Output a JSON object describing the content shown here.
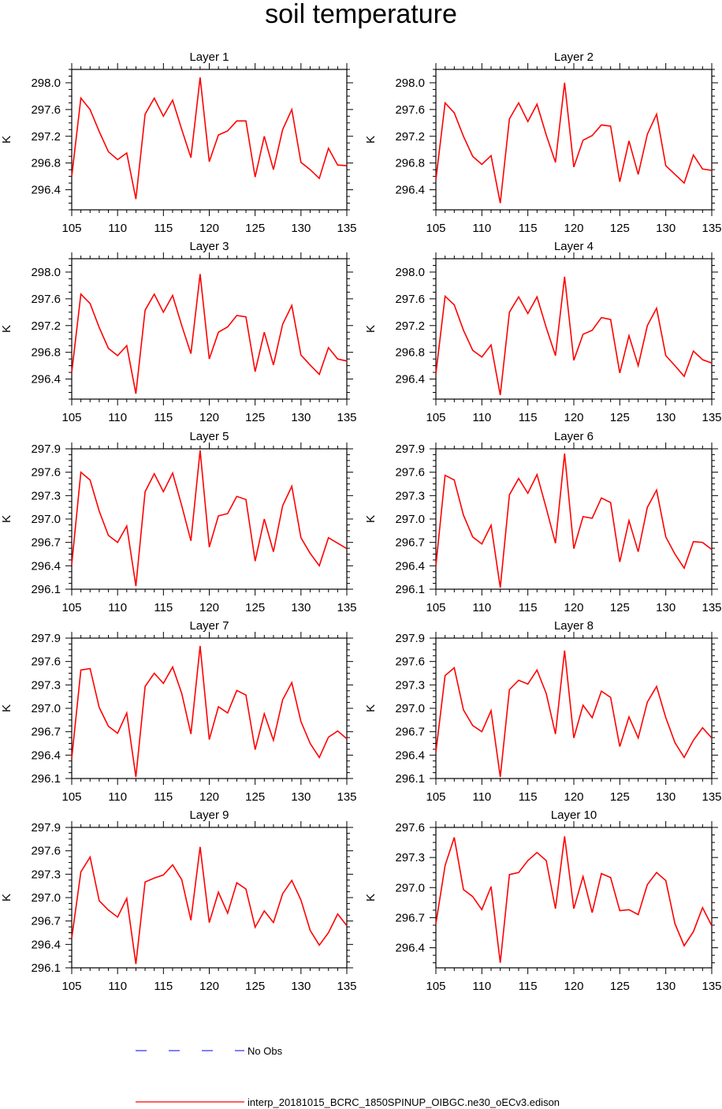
{
  "title": "soil temperature",
  "legend": {
    "obs_label": "No Obs",
    "obs_color": "#3333ff",
    "model_label": "interp_20181015_BCRC_1850SPINUP_OIBGC.ne30_oECv3.edison",
    "model_color": "#ff0000"
  },
  "chart_data": [
    {
      "type": "line",
      "title": "Layer 1",
      "ylabel": "K",
      "xlim": [
        105,
        135
      ],
      "ylim": [
        296.1,
        298.2
      ],
      "xticks": [
        105,
        110,
        115,
        120,
        125,
        130,
        135
      ],
      "yticks": [
        296.4,
        296.8,
        297.2,
        297.6,
        298.0
      ],
      "ytick_labels": [
        "296.4",
        "296.8",
        "297.2",
        "297.6",
        "298.0"
      ],
      "x": [
        105,
        106,
        107,
        108,
        109,
        110,
        111,
        112,
        113,
        114,
        115,
        116,
        117,
        118,
        119,
        120,
        121,
        122,
        123,
        124,
        125,
        126,
        127,
        128,
        129,
        130,
        131,
        132,
        133,
        134,
        135
      ],
      "values": [
        296.6,
        297.77,
        297.6,
        297.27,
        296.97,
        296.85,
        296.95,
        296.26,
        297.53,
        297.77,
        297.5,
        297.74,
        297.3,
        296.88,
        298.08,
        296.82,
        297.22,
        297.28,
        297.43,
        297.43,
        296.59,
        297.2,
        296.7,
        297.3,
        297.6,
        296.81,
        296.7,
        296.57,
        297.02,
        296.77,
        296.76
      ]
    },
    {
      "type": "line",
      "title": "Layer 2",
      "ylabel": "K",
      "xlim": [
        105,
        135
      ],
      "ylim": [
        296.1,
        298.2
      ],
      "xticks": [
        105,
        110,
        115,
        120,
        125,
        130,
        135
      ],
      "yticks": [
        296.4,
        296.8,
        297.2,
        297.6,
        298.0
      ],
      "ytick_labels": [
        "296.4",
        "296.8",
        "297.2",
        "297.6",
        "298.0"
      ],
      "x": [
        105,
        106,
        107,
        108,
        109,
        110,
        111,
        112,
        113,
        114,
        115,
        116,
        117,
        118,
        119,
        120,
        121,
        122,
        123,
        124,
        125,
        126,
        127,
        128,
        129,
        130,
        131,
        132,
        133,
        134,
        135
      ],
      "values": [
        296.55,
        297.7,
        297.55,
        297.2,
        296.9,
        296.78,
        296.91,
        296.2,
        297.46,
        297.7,
        297.42,
        297.68,
        297.22,
        296.81,
        298.0,
        296.74,
        297.14,
        297.21,
        297.37,
        297.35,
        296.52,
        297.13,
        296.63,
        297.23,
        297.53,
        296.76,
        296.63,
        296.5,
        296.92,
        296.71,
        296.69
      ]
    },
    {
      "type": "line",
      "title": "Layer 3",
      "ylabel": "K",
      "xlim": [
        105,
        135
      ],
      "ylim": [
        296.1,
        298.2
      ],
      "xticks": [
        105,
        110,
        115,
        120,
        125,
        130,
        135
      ],
      "yticks": [
        296.4,
        296.8,
        297.2,
        297.6,
        298.0
      ],
      "ytick_labels": [
        "296.4",
        "296.8",
        "297.2",
        "297.6",
        "298.0"
      ],
      "x": [
        105,
        106,
        107,
        108,
        109,
        110,
        111,
        112,
        113,
        114,
        115,
        116,
        117,
        118,
        119,
        120,
        121,
        122,
        123,
        124,
        125,
        126,
        127,
        128,
        129,
        130,
        131,
        132,
        133,
        134,
        135
      ],
      "values": [
        296.5,
        297.67,
        297.53,
        297.17,
        296.86,
        296.75,
        296.9,
        296.18,
        297.43,
        297.67,
        297.4,
        297.65,
        297.2,
        296.78,
        297.97,
        296.7,
        297.1,
        297.18,
        297.35,
        297.33,
        296.51,
        297.1,
        296.61,
        297.22,
        297.5,
        296.76,
        296.61,
        296.47,
        296.87,
        296.7,
        296.67
      ]
    },
    {
      "type": "line",
      "title": "Layer 4",
      "ylabel": "K",
      "xlim": [
        105,
        135
      ],
      "ylim": [
        296.1,
        298.2
      ],
      "xticks": [
        105,
        110,
        115,
        120,
        125,
        130,
        135
      ],
      "yticks": [
        296.4,
        296.8,
        297.2,
        297.6,
        298.0
      ],
      "ytick_labels": [
        "296.4",
        "296.8",
        "297.2",
        "297.6",
        "298.0"
      ],
      "x": [
        105,
        106,
        107,
        108,
        109,
        110,
        111,
        112,
        113,
        114,
        115,
        116,
        117,
        118,
        119,
        120,
        121,
        122,
        123,
        124,
        125,
        126,
        127,
        128,
        129,
        130,
        131,
        132,
        133,
        134,
        135
      ],
      "values": [
        296.48,
        297.64,
        297.51,
        297.13,
        296.83,
        296.73,
        296.91,
        296.16,
        297.4,
        297.63,
        297.38,
        297.63,
        297.17,
        296.75,
        297.93,
        296.68,
        297.07,
        297.13,
        297.32,
        297.29,
        296.49,
        297.05,
        296.6,
        297.2,
        297.46,
        296.75,
        296.6,
        296.44,
        296.82,
        296.69,
        296.64
      ]
    },
    {
      "type": "line",
      "title": "Layer 5",
      "ylabel": "K",
      "xlim": [
        105,
        135
      ],
      "ylim": [
        296.1,
        297.9
      ],
      "xticks": [
        105,
        110,
        115,
        120,
        125,
        130,
        135
      ],
      "yticks": [
        296.1,
        296.4,
        296.7,
        297.0,
        297.3,
        297.6,
        297.9
      ],
      "ytick_labels": [
        "296.1",
        "296.4",
        "296.7",
        "297.0",
        "297.3",
        "297.6",
        "297.9"
      ],
      "x": [
        105,
        106,
        107,
        108,
        109,
        110,
        111,
        112,
        113,
        114,
        115,
        116,
        117,
        118,
        119,
        120,
        121,
        122,
        123,
        124,
        125,
        126,
        127,
        128,
        129,
        130,
        131,
        132,
        133,
        134,
        135
      ],
      "values": [
        296.42,
        297.6,
        297.5,
        297.1,
        296.79,
        296.7,
        296.91,
        296.14,
        297.35,
        297.58,
        297.35,
        297.59,
        297.17,
        296.72,
        297.88,
        296.64,
        297.04,
        297.07,
        297.29,
        297.25,
        296.46,
        297.0,
        296.58,
        297.17,
        297.42,
        296.76,
        296.56,
        296.4,
        296.76,
        296.69,
        296.62
      ]
    },
    {
      "type": "line",
      "title": "Layer 6",
      "ylabel": "K",
      "xlim": [
        105,
        135
      ],
      "ylim": [
        296.1,
        297.9
      ],
      "xticks": [
        105,
        110,
        115,
        120,
        125,
        130,
        135
      ],
      "yticks": [
        296.1,
        296.4,
        296.7,
        297.0,
        297.3,
        297.6,
        297.9
      ],
      "ytick_labels": [
        "296.1",
        "296.4",
        "296.7",
        "297.0",
        "297.3",
        "297.6",
        "297.9"
      ],
      "x": [
        105,
        106,
        107,
        108,
        109,
        110,
        111,
        112,
        113,
        114,
        115,
        116,
        117,
        118,
        119,
        120,
        121,
        122,
        123,
        124,
        125,
        126,
        127,
        128,
        129,
        130,
        131,
        132,
        133,
        134,
        135
      ],
      "values": [
        296.4,
        297.56,
        297.5,
        297.05,
        296.77,
        296.68,
        296.92,
        296.12,
        297.31,
        297.52,
        297.33,
        297.57,
        297.14,
        296.69,
        297.84,
        296.62,
        297.03,
        297.01,
        297.27,
        297.21,
        296.45,
        296.98,
        296.58,
        297.15,
        297.37,
        296.77,
        296.55,
        296.37,
        296.71,
        296.7,
        296.61
      ]
    },
    {
      "type": "line",
      "title": "Layer 7",
      "ylabel": "K",
      "xlim": [
        105,
        135
      ],
      "ylim": [
        296.1,
        297.9
      ],
      "xticks": [
        105,
        110,
        115,
        120,
        125,
        130,
        135
      ],
      "yticks": [
        296.1,
        296.4,
        296.7,
        297.0,
        297.3,
        297.6,
        297.9
      ],
      "ytick_labels": [
        "296.1",
        "296.4",
        "296.7",
        "297.0",
        "297.3",
        "297.6",
        "297.9"
      ],
      "x": [
        105,
        106,
        107,
        108,
        109,
        110,
        111,
        112,
        113,
        114,
        115,
        116,
        117,
        118,
        119,
        120,
        121,
        122,
        123,
        124,
        125,
        126,
        127,
        128,
        129,
        130,
        131,
        132,
        133,
        134,
        135
      ],
      "values": [
        296.36,
        297.49,
        297.51,
        297.01,
        296.77,
        296.68,
        296.94,
        296.12,
        297.28,
        297.45,
        297.32,
        297.53,
        297.19,
        296.67,
        297.8,
        296.6,
        297.02,
        296.94,
        297.23,
        297.17,
        296.47,
        296.93,
        296.59,
        297.11,
        297.33,
        296.83,
        296.55,
        296.37,
        296.63,
        296.71,
        296.61
      ]
    },
    {
      "type": "line",
      "title": "Layer 8",
      "ylabel": "K",
      "xlim": [
        105,
        135
      ],
      "ylim": [
        296.1,
        297.9
      ],
      "xticks": [
        105,
        110,
        115,
        120,
        125,
        130,
        135
      ],
      "yticks": [
        296.1,
        296.4,
        296.7,
        297.0,
        297.3,
        297.6,
        297.9
      ],
      "ytick_labels": [
        "296.1",
        "296.4",
        "296.7",
        "297.0",
        "297.3",
        "297.6",
        "297.9"
      ],
      "x": [
        105,
        106,
        107,
        108,
        109,
        110,
        111,
        112,
        113,
        114,
        115,
        116,
        117,
        118,
        119,
        120,
        121,
        122,
        123,
        124,
        125,
        126,
        127,
        128,
        129,
        130,
        131,
        132,
        133,
        134,
        135
      ],
      "values": [
        296.44,
        297.42,
        297.52,
        296.98,
        296.78,
        296.7,
        296.97,
        296.12,
        297.24,
        297.36,
        297.31,
        297.49,
        297.19,
        296.67,
        297.74,
        296.62,
        297.04,
        296.88,
        297.22,
        297.14,
        296.51,
        296.89,
        296.62,
        297.08,
        297.28,
        296.88,
        296.56,
        296.37,
        296.59,
        296.75,
        296.62
      ]
    },
    {
      "type": "line",
      "title": "Layer 9",
      "ylabel": "K",
      "xlim": [
        105,
        135
      ],
      "ylim": [
        296.1,
        297.9
      ],
      "xticks": [
        105,
        110,
        115,
        120,
        125,
        130,
        135
      ],
      "yticks": [
        296.1,
        296.4,
        296.7,
        297.0,
        297.3,
        297.6,
        297.9
      ],
      "ytick_labels": [
        "296.1",
        "296.4",
        "296.7",
        "297.0",
        "297.3",
        "297.6",
        "297.9"
      ],
      "x": [
        105,
        106,
        107,
        108,
        109,
        110,
        111,
        112,
        113,
        114,
        115,
        116,
        117,
        118,
        119,
        120,
        121,
        122,
        123,
        124,
        125,
        126,
        127,
        128,
        129,
        130,
        131,
        132,
        133,
        134,
        135
      ],
      "values": [
        296.48,
        297.33,
        297.52,
        296.96,
        296.84,
        296.75,
        296.99,
        296.15,
        297.2,
        297.25,
        297.29,
        297.42,
        297.23,
        296.71,
        297.65,
        296.68,
        297.07,
        296.8,
        297.19,
        297.11,
        296.62,
        296.83,
        296.68,
        297.05,
        297.22,
        296.97,
        296.58,
        296.39,
        296.55,
        296.79,
        296.64
      ]
    },
    {
      "type": "line",
      "title": "Layer 10",
      "ylabel": "K",
      "xlim": [
        105,
        135
      ],
      "ylim": [
        296.2,
        297.6
      ],
      "xticks": [
        105,
        110,
        115,
        120,
        125,
        130,
        135
      ],
      "yticks": [
        296.4,
        296.7,
        297.0,
        297.3,
        297.6
      ],
      "ytick_labels": [
        "296.4",
        "296.7",
        "297.0",
        "297.3",
        "297.6"
      ],
      "x": [
        105,
        106,
        107,
        108,
        109,
        110,
        111,
        112,
        113,
        114,
        115,
        116,
        117,
        118,
        119,
        120,
        121,
        122,
        123,
        124,
        125,
        126,
        127,
        128,
        129,
        130,
        131,
        132,
        133,
        134,
        135
      ],
      "values": [
        296.64,
        297.22,
        297.5,
        296.98,
        296.91,
        296.78,
        297.01,
        296.25,
        297.13,
        297.15,
        297.27,
        297.35,
        297.27,
        296.79,
        297.51,
        296.79,
        297.11,
        296.75,
        297.14,
        297.1,
        296.77,
        296.78,
        296.73,
        297.03,
        297.15,
        297.07,
        296.64,
        296.42,
        296.56,
        296.8,
        296.62
      ]
    }
  ]
}
